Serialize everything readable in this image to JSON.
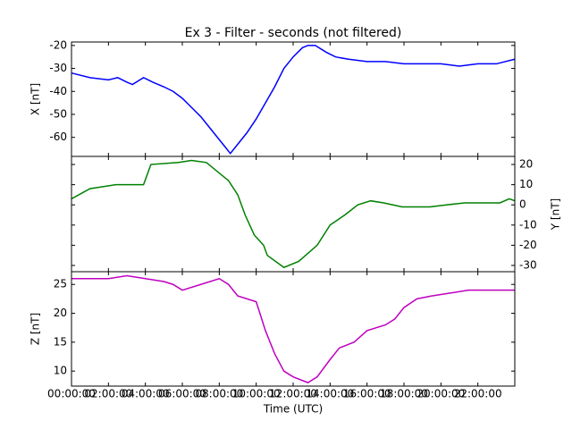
{
  "chart_data": [
    {
      "type": "line",
      "title": "Ex 3 - Filter - seconds (not filtered)",
      "ylabel": "X [nT]",
      "y_axis_side": "left",
      "x": [
        0,
        1,
        2,
        2.5,
        3,
        3.3,
        3.9,
        4.4,
        5,
        5.5,
        6,
        6.5,
        7,
        7.5,
        8,
        8.6,
        9,
        9.5,
        10,
        10.5,
        11,
        11.5,
        12,
        12.5,
        12.8,
        13.2,
        13.8,
        14.3,
        15,
        16,
        17,
        18,
        19,
        20,
        21,
        22,
        23,
        24
      ],
      "series": [
        {
          "color": "#0000ff",
          "values": [
            -32,
            -34,
            -35,
            -34,
            -36,
            -37,
            -34,
            -36,
            -38,
            -40,
            -43,
            -47,
            -51,
            -56,
            -61,
            -67,
            -63,
            -58,
            -52,
            -45,
            -38,
            -30,
            -25,
            -21,
            -20,
            -20,
            -23,
            -25,
            -26,
            -27,
            -27,
            -28,
            -28,
            -28,
            -29,
            -28,
            -28,
            -26
          ]
        }
      ],
      "xlim": [
        0,
        24
      ],
      "ylim": [
        -68.3,
        -18.5
      ],
      "yticks": [
        -60,
        -50,
        -40,
        -30,
        -20
      ]
    },
    {
      "type": "line",
      "ylabel": "Y [nT]",
      "y_axis_side": "right",
      "x": [
        0,
        1,
        2.4,
        3.9,
        4.1,
        4.3,
        5.8,
        6.5,
        7.3,
        8.5,
        9,
        9.4,
        9.9,
        10.4,
        10.6,
        11.5,
        12.3,
        13.3,
        14,
        14.8,
        15.5,
        16.2,
        16.9,
        17.9,
        19.4,
        20.3,
        21.3,
        22.3,
        23.2,
        23.7,
        24
      ],
      "series": [
        {
          "color": "#008000",
          "values": [
            3,
            8,
            10,
            10,
            15,
            20,
            21,
            22,
            21,
            12,
            5,
            -5,
            -15,
            -20,
            -25,
            -31,
            -28,
            -20,
            -10,
            -5,
            0,
            2,
            1,
            -1,
            -1,
            0,
            1,
            1,
            1,
            3,
            2
          ]
        }
      ],
      "xlim": [
        0,
        24
      ],
      "ylim": [
        -33.1,
        24
      ],
      "yticks": [
        -30,
        -20,
        -10,
        0,
        10,
        20
      ]
    },
    {
      "type": "line",
      "ylabel": "Z [nT]",
      "xlabel": "Time (UTC)",
      "y_axis_side": "left",
      "x": [
        0,
        2,
        3,
        4,
        5,
        5.5,
        6,
        7,
        8,
        8.5,
        9,
        10,
        10.5,
        11,
        11.5,
        12,
        12.8,
        13.3,
        14,
        14.5,
        15.3,
        16,
        17,
        17.5,
        18,
        18.7,
        19.5,
        20.5,
        21.5,
        24
      ],
      "series": [
        {
          "color": "#bf00bf",
          "values": [
            26,
            26,
            26.5,
            26,
            25.5,
            25,
            24,
            25,
            26,
            25,
            23,
            22,
            17,
            13,
            10,
            9,
            8,
            9,
            12,
            14,
            15,
            17,
            18,
            19,
            21,
            22.5,
            23,
            23.5,
            24,
            24
          ]
        }
      ],
      "xlim": [
        0,
        24
      ],
      "ylim": [
        7.4,
        27.2
      ],
      "yticks": [
        10,
        15,
        20,
        25
      ],
      "xticks": [
        {
          "value": 0,
          "label": "00:00:00"
        },
        {
          "value": 2,
          "label": "02:00:00"
        },
        {
          "value": 4,
          "label": "04:00:00"
        },
        {
          "value": 6,
          "label": "06:00:00"
        },
        {
          "value": 8,
          "label": "08:00:00"
        },
        {
          "value": 10,
          "label": "10:00:00"
        },
        {
          "value": 12,
          "label": "12:00:00"
        },
        {
          "value": 14,
          "label": "14:00:00"
        },
        {
          "value": 16,
          "label": "16:00:00"
        },
        {
          "value": 18,
          "label": "18:00:00"
        },
        {
          "value": 20,
          "label": "20:00:00"
        },
        {
          "value": 22,
          "label": "22:00:00"
        }
      ]
    }
  ]
}
